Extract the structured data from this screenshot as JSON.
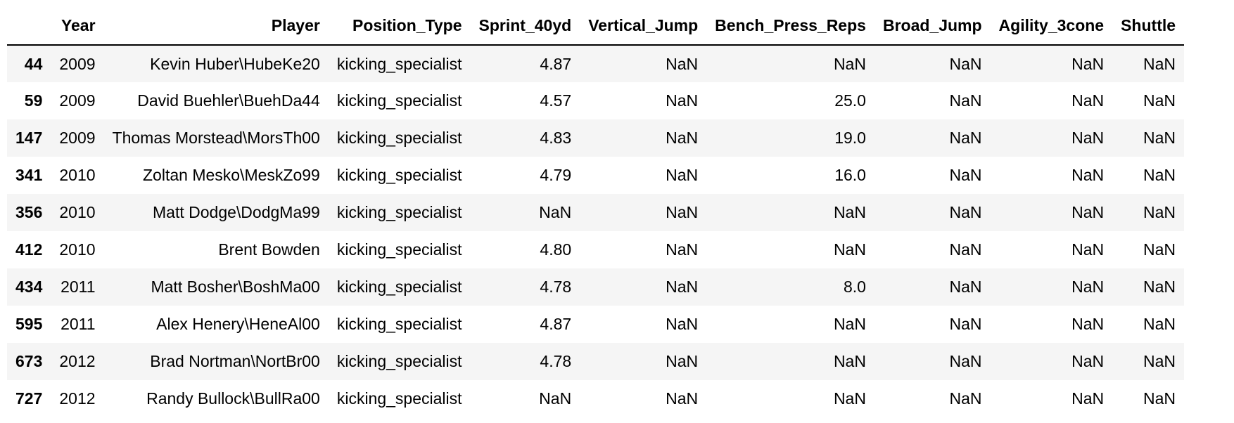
{
  "table": {
    "index_header": "",
    "columns": [
      "Year",
      "Player",
      "Position_Type",
      "Sprint_40yd",
      "Vertical_Jump",
      "Bench_Press_Reps",
      "Broad_Jump",
      "Agility_3cone",
      "Shuttle"
    ],
    "rows": [
      {
        "index": "44",
        "cells": [
          "2009",
          "Kevin Huber\\HubeKe20",
          "kicking_specialist",
          "4.87",
          "NaN",
          "NaN",
          "NaN",
          "NaN",
          "NaN"
        ]
      },
      {
        "index": "59",
        "cells": [
          "2009",
          "David Buehler\\BuehDa44",
          "kicking_specialist",
          "4.57",
          "NaN",
          "25.0",
          "NaN",
          "NaN",
          "NaN"
        ]
      },
      {
        "index": "147",
        "cells": [
          "2009",
          "Thomas Morstead\\MorsTh00",
          "kicking_specialist",
          "4.83",
          "NaN",
          "19.0",
          "NaN",
          "NaN",
          "NaN"
        ]
      },
      {
        "index": "341",
        "cells": [
          "2010",
          "Zoltan Mesko\\MeskZo99",
          "kicking_specialist",
          "4.79",
          "NaN",
          "16.0",
          "NaN",
          "NaN",
          "NaN"
        ]
      },
      {
        "index": "356",
        "cells": [
          "2010",
          "Matt Dodge\\DodgMa99",
          "kicking_specialist",
          "NaN",
          "NaN",
          "NaN",
          "NaN",
          "NaN",
          "NaN"
        ]
      },
      {
        "index": "412",
        "cells": [
          "2010",
          "Brent Bowden",
          "kicking_specialist",
          "4.80",
          "NaN",
          "NaN",
          "NaN",
          "NaN",
          "NaN"
        ]
      },
      {
        "index": "434",
        "cells": [
          "2011",
          "Matt Bosher\\BoshMa00",
          "kicking_specialist",
          "4.78",
          "NaN",
          "8.0",
          "NaN",
          "NaN",
          "NaN"
        ]
      },
      {
        "index": "595",
        "cells": [
          "2011",
          "Alex Henery\\HeneAl00",
          "kicking_specialist",
          "4.87",
          "NaN",
          "NaN",
          "NaN",
          "NaN",
          "NaN"
        ]
      },
      {
        "index": "673",
        "cells": [
          "2012",
          "Brad Nortman\\NortBr00",
          "kicking_specialist",
          "4.78",
          "NaN",
          "NaN",
          "NaN",
          "NaN",
          "NaN"
        ]
      },
      {
        "index": "727",
        "cells": [
          "2012",
          "Randy Bullock\\BullRa00",
          "kicking_specialist",
          "NaN",
          "NaN",
          "NaN",
          "NaN",
          "NaN",
          "NaN"
        ]
      }
    ]
  }
}
